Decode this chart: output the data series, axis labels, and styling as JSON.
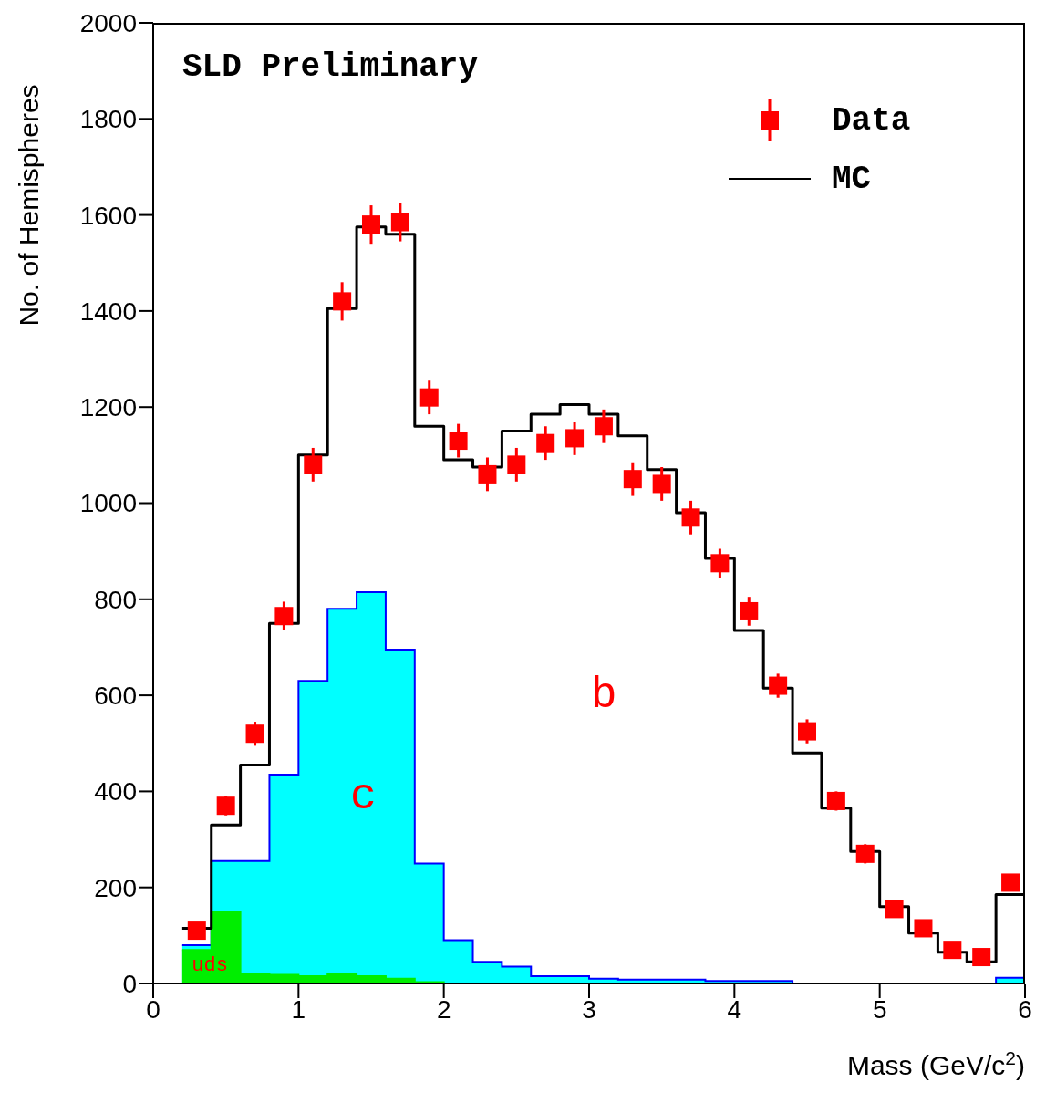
{
  "chart_data": {
    "type": "histogram",
    "title": "SLD Preliminary",
    "xlabel": "Mass (GeV/c$^{2}$)",
    "ylabel": "No. of Hemispheres",
    "bins": [
      0.2,
      0.4,
      0.6,
      0.8,
      1.0,
      1.2,
      1.4,
      1.6,
      1.8,
      2.0,
      2.2,
      2.4,
      2.6,
      2.8,
      3.0,
      3.2,
      3.4,
      3.6,
      3.8,
      4.0,
      4.2,
      4.4,
      4.6,
      4.8,
      5.0,
      5.2,
      5.4,
      5.6,
      5.8,
      6.0
    ],
    "series": [
      {
        "color": "#00ffff",
        "values": [
          80,
          255,
          255,
          435,
          630,
          780,
          815,
          695,
          250,
          90,
          45,
          35,
          15,
          15,
          10,
          8,
          8,
          8,
          5,
          5,
          5,
          0,
          0,
          0,
          0,
          0,
          0,
          0,
          12
        ]
      },
      {
        "color": "#00ee00",
        "values": [
          70,
          150,
          20,
          18,
          15,
          20,
          15,
          10,
          3,
          0,
          0,
          0,
          0,
          0,
          0,
          0,
          0,
          0,
          0,
          0,
          0,
          0,
          0,
          0,
          0,
          0,
          0,
          0,
          0
        ]
      },
      {
        "name": "MC",
        "color": "#000000",
        "values": [
          115,
          330,
          455,
          750,
          1100,
          1405,
          1575,
          1560,
          1160,
          1090,
          1075,
          1150,
          1185,
          1205,
          1185,
          1140,
          1070,
          980,
          885,
          735,
          615,
          480,
          365,
          275,
          160,
          105,
          65,
          45,
          185
        ]
      },
      {
        "type": "scatter",
        "name": "Data",
        "color": "#ff0000",
        "marker": "square",
        "x": [
          0.3,
          0.5,
          0.7,
          0.9,
          1.1,
          1.3,
          1.5,
          1.7,
          1.9,
          2.1,
          2.3,
          2.5,
          2.7,
          2.9,
          3.1,
          3.3,
          3.5,
          3.7,
          3.9,
          4.1,
          4.3,
          4.5,
          4.7,
          4.9,
          5.1,
          5.3,
          5.5,
          5.7,
          5.9
        ],
        "values": [
          110,
          370,
          520,
          765,
          1080,
          1420,
          1580,
          1585,
          1220,
          1130,
          1060,
          1080,
          1125,
          1135,
          1160,
          1050,
          1040,
          970,
          875,
          775,
          620,
          525,
          380,
          270,
          155,
          115,
          70,
          55,
          210
        ],
        "errors": [
          15,
          20,
          25,
          30,
          35,
          40,
          40,
          40,
          35,
          35,
          35,
          35,
          35,
          35,
          35,
          35,
          35,
          35,
          30,
          30,
          25,
          25,
          20,
          20,
          15,
          15,
          10,
          10,
          15
        ]
      }
    ],
    "annotations": [
      "b",
      "c",
      "uds"
    ],
    "xlim": [
      0,
      6
    ],
    "xticks": [
      0,
      1,
      2,
      3,
      4,
      5,
      6
    ],
    "ylim": [
      0,
      2000
    ],
    "yticks": [
      0,
      200,
      400,
      600,
      800,
      1000,
      1200,
      1400,
      1600,
      1800,
      2000
    ],
    "legend": "top right",
    "grid": false
  }
}
